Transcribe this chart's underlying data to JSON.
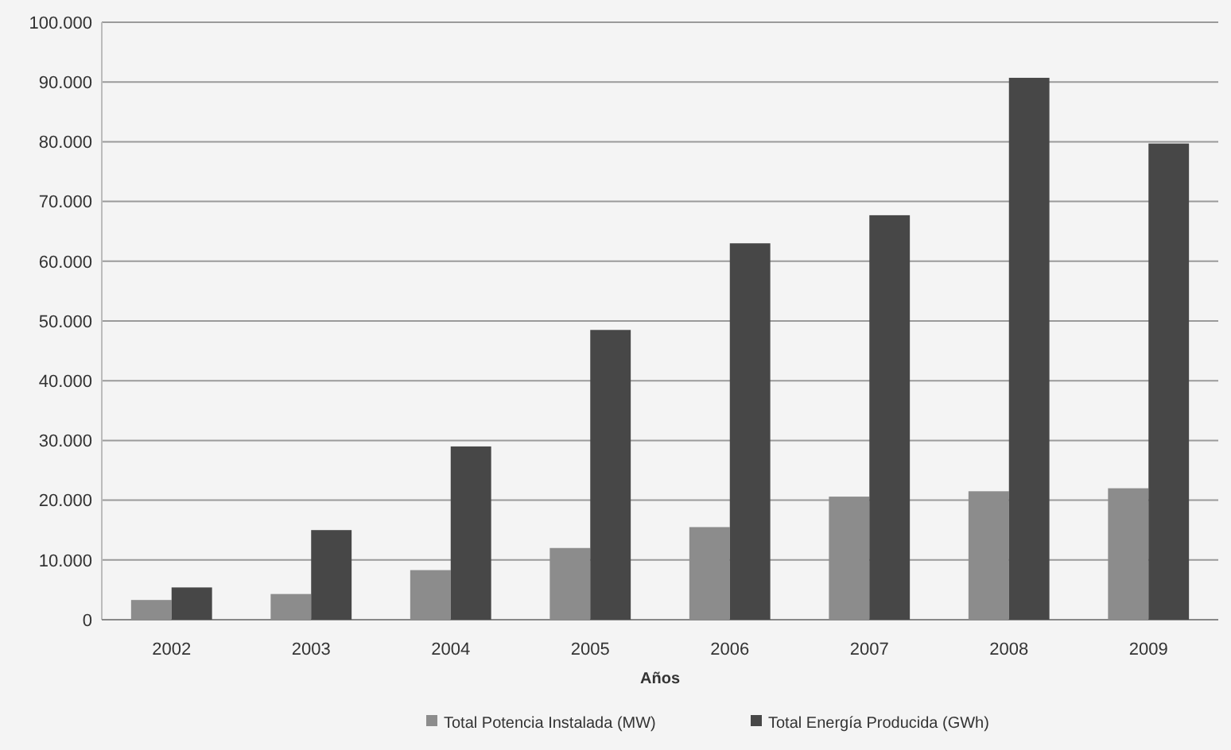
{
  "chart_data": {
    "type": "bar",
    "xlabel": "Años",
    "categories": [
      "2002",
      "2003",
      "2004",
      "2005",
      "2006",
      "2007",
      "2008",
      "2009"
    ],
    "series": [
      {
        "name": "Total Potencia Instalada (MW)",
        "color": "#8c8c8c",
        "values": [
          3300,
          4300,
          8300,
          12000,
          15500,
          20600,
          21500,
          22000
        ]
      },
      {
        "name": "Total Energía Producida (GWh)",
        "color": "#474747",
        "values": [
          5400,
          15000,
          29000,
          48500,
          63000,
          67700,
          90700,
          79700
        ]
      }
    ],
    "ylim": [
      0,
      100000
    ],
    "yticks": [
      {
        "value": 0,
        "label": "0"
      },
      {
        "value": 10000,
        "label": "10.000"
      },
      {
        "value": 20000,
        "label": "20.000"
      },
      {
        "value": 30000,
        "label": "30.000"
      },
      {
        "value": 40000,
        "label": "40.000"
      },
      {
        "value": 50000,
        "label": "50.000"
      },
      {
        "value": 60000,
        "label": "60.000"
      },
      {
        "value": 70000,
        "label": "70.000"
      },
      {
        "value": 80000,
        "label": "80.000"
      },
      {
        "value": 90000,
        "label": "90.000"
      },
      {
        "value": 100000,
        "label": "100.000"
      }
    ],
    "grid": "y",
    "legend": "bottom"
  }
}
